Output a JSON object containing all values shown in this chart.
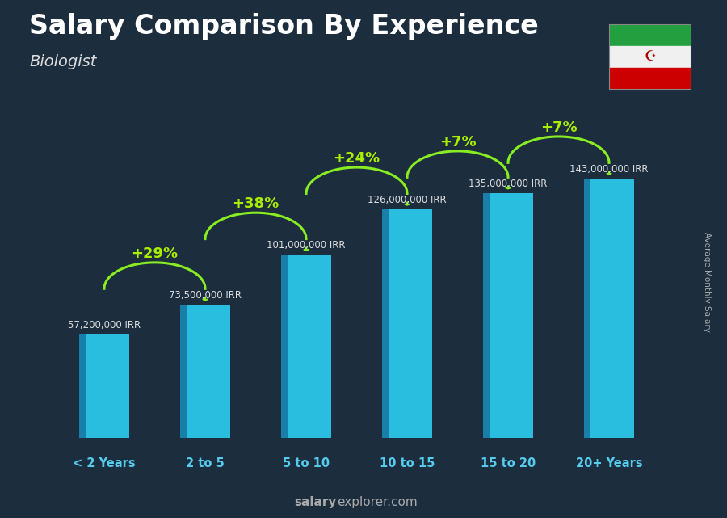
{
  "title": "Salary Comparison By Experience",
  "subtitle": "Biologist",
  "categories": [
    "< 2 Years",
    "2 to 5",
    "5 to 10",
    "10 to 15",
    "15 to 20",
    "20+ Years"
  ],
  "values": [
    57200000,
    73500000,
    101000000,
    126000000,
    135000000,
    143000000
  ],
  "value_labels": [
    "57,200,000 IRR",
    "73,500,000 IRR",
    "101,000,000 IRR",
    "126,000,000 IRR",
    "135,000,000 IRR",
    "143,000,000 IRR"
  ],
  "pct_labels": [
    "+29%",
    "+38%",
    "+24%",
    "+7%",
    "+7%"
  ],
  "bar_color": "#29bde0",
  "bar_dark_color": "#1a7fa8",
  "bg_color": "#1c2d3e",
  "title_color": "#ffffff",
  "subtitle_color": "#dddddd",
  "value_color": "#dddddd",
  "pct_color": "#aaee00",
  "cat_color": "#55ccee",
  "arrow_color": "#88ee22",
  "footer_bold": "salary",
  "footer_normal": "explorer.com",
  "ylabel": "Average Monthly Salary",
  "ylim": [
    0,
    170000000
  ]
}
